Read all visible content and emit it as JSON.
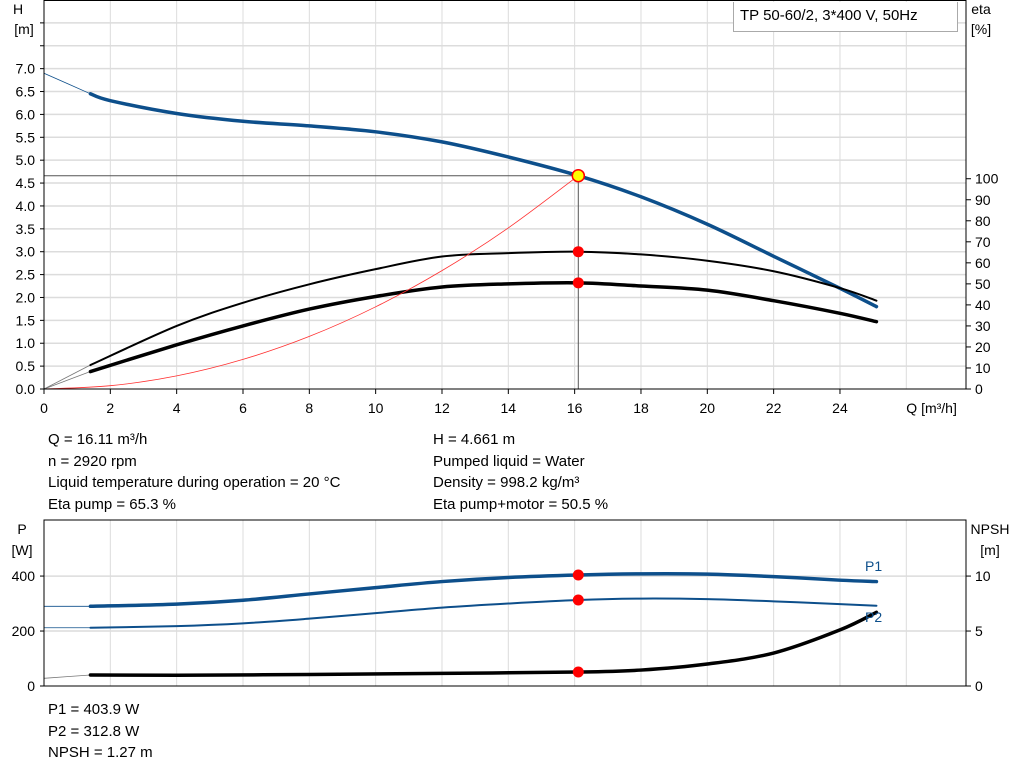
{
  "chart_data": [
    {
      "type": "line",
      "title": "TP 50-60/2, 3*400 V, 50Hz",
      "xlabel": "Q [m³/h]",
      "ylabel_left": [
        "H",
        "[m]"
      ],
      "ylabel_right": [
        "eta",
        "[%]"
      ],
      "xlim": [
        0,
        27.8
      ],
      "ylim_left": [
        0,
        8.5
      ],
      "ylim_right": [
        0,
        185
      ],
      "x_ticks": [
        "0",
        "2",
        "4",
        "6",
        "8",
        "10",
        "12",
        "14",
        "16",
        "18",
        "20",
        "22",
        "24"
      ],
      "y_ticks_left": [
        "0.0",
        "0.5",
        "1.0",
        "1.5",
        "2.0",
        "2.5",
        "3.0",
        "3.5",
        "4.0",
        "4.5",
        "5.0",
        "5.5",
        "6.0",
        "6.5",
        "7.0"
      ],
      "y_ticks_right": [
        "0",
        "10",
        "20",
        "30",
        "40",
        "50",
        "60",
        "70",
        "80",
        "90",
        "100"
      ],
      "grid": true,
      "operating_point": {
        "Q": 16.11,
        "H": 4.661,
        "eta_pump": 65.3,
        "eta_pump_motor": 50.5
      },
      "series": [
        {
          "key": "H",
          "axis": "left",
          "color": "#0d4f8b",
          "x": [
            1.4,
            2,
            4,
            6,
            8,
            10,
            12,
            14,
            16.11,
            18,
            20,
            22,
            24,
            25.1
          ],
          "y": [
            6.45,
            6.3,
            6.02,
            5.85,
            5.75,
            5.62,
            5.4,
            5.07,
            4.661,
            4.2,
            3.6,
            2.9,
            2.2,
            1.8
          ],
          "extension": {
            "x": [
              0,
              1.4
            ],
            "y": [
              6.9,
              6.45
            ]
          }
        },
        {
          "key": "eta_pump",
          "axis": "right",
          "color": "#000000",
          "x": [
            1.4,
            4,
            6,
            8,
            10,
            12,
            14,
            16.11,
            18,
            20,
            22,
            24,
            25.1
          ],
          "y": [
            11.4,
            30,
            41,
            49.8,
            57,
            63,
            64.6,
            65.3,
            64,
            61,
            56,
            48,
            42
          ],
          "extension": {
            "x": [
              0,
              1.4
            ],
            "y": [
              0,
              11.4
            ]
          }
        },
        {
          "key": "eta_pump_motor",
          "axis": "right",
          "color": "#000000",
          "x": [
            1.4,
            4,
            6,
            8,
            10,
            12,
            14,
            16.11,
            18,
            20,
            22,
            24,
            25.1
          ],
          "y": [
            8.3,
            21,
            30,
            38,
            44,
            48.5,
            50,
            50.5,
            49,
            47,
            42,
            36,
            32
          ],
          "extension": {
            "x": [
              0,
              1.4
            ],
            "y": [
              0,
              8.3
            ]
          }
        },
        {
          "key": "system_curve",
          "axis": "left",
          "color": "#ff3030",
          "x": [
            0,
            2,
            4,
            6,
            8,
            10,
            12,
            14,
            16.11
          ],
          "y": [
            0,
            0.072,
            0.287,
            0.647,
            1.149,
            1.796,
            2.586,
            3.52,
            4.661
          ]
        }
      ]
    },
    {
      "type": "line",
      "ylabel_left": [
        "P",
        "[W]"
      ],
      "ylabel_right": [
        "NPSH",
        "[m]"
      ],
      "xlim": [
        0,
        27.8
      ],
      "ylim_left": [
        0,
        604
      ],
      "ylim_right": [
        0,
        15.1
      ],
      "y_ticks_left": [
        "0",
        "200",
        "400"
      ],
      "y_ticks_right": [
        "0",
        "5",
        "10"
      ],
      "grid": true,
      "operating_point": {
        "Q": 16.11,
        "P1": 403.9,
        "P2": 312.8,
        "NPSH": 1.27
      },
      "series": [
        {
          "name": "P1",
          "axis": "left",
          "color": "#0d4f8b",
          "x": [
            1.4,
            4,
            6,
            8,
            10,
            12,
            14,
            16.11,
            18,
            20,
            22,
            24,
            25.1
          ],
          "y": [
            290,
            298,
            312,
            335,
            358,
            380,
            395,
            403.9,
            408,
            407,
            398,
            385,
            380
          ],
          "extension": {
            "x": [
              0,
              1.4
            ],
            "y": [
              290,
              290
            ]
          }
        },
        {
          "name": "P2",
          "axis": "left",
          "color": "#0d4f8b",
          "x": [
            1.4,
            4,
            6,
            8,
            10,
            12,
            14,
            16.11,
            18,
            20,
            22,
            24,
            25.1
          ],
          "y": [
            212,
            218,
            228,
            245,
            265,
            285,
            300,
            312.8,
            318,
            316,
            308,
            298,
            292
          ],
          "extension": {
            "x": [
              0,
              1.4
            ],
            "y": [
              212,
              212
            ]
          }
        },
        {
          "key": "NPSH",
          "axis": "right",
          "color": "#000000",
          "x": [
            1.4,
            4,
            8,
            12,
            16.11,
            18,
            20,
            22,
            24,
            25.1
          ],
          "y": [
            1.0,
            0.98,
            1.05,
            1.15,
            1.27,
            1.45,
            2.0,
            3.0,
            5.1,
            6.7
          ],
          "extension": {
            "x": [
              0,
              1.4
            ],
            "y": [
              0.7,
              1.0
            ]
          }
        }
      ]
    }
  ],
  "info_top_left": [
    "Q = 16.11 m³/h",
    "n = 2920 rpm",
    "Liquid temperature during operation = 20 °C",
    "Eta pump = 65.3 %"
  ],
  "info_top_right": [
    "H = 4.661 m",
    "Pumped liquid = Water",
    "Density = 998.2 kg/m³",
    "Eta pump+motor = 50.5 %"
  ],
  "info_bottom": [
    "P1 = 403.9 W",
    "P2 = 312.8 W",
    "NPSH = 1.27 m"
  ]
}
